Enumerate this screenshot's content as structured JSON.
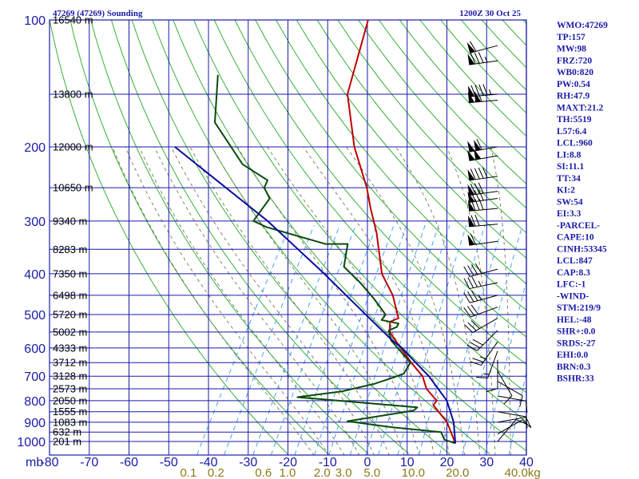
{
  "header": {
    "station_title": "47269 (47269) Sounding",
    "time": "1200Z 30 Oct 25"
  },
  "chart_data": {
    "type": "line",
    "pressure_levels": [
      100,
      200,
      300,
      400,
      500,
      600,
      700,
      800,
      900,
      1000
    ],
    "pressure_unit_label": "mb",
    "temperature_ticks": [
      -80,
      -70,
      -60,
      -50,
      -40,
      -30,
      -20,
      -10,
      0,
      10,
      20,
      30,
      40
    ],
    "xlim": [
      -80,
      40
    ],
    "ylim_mb": [
      1050,
      100
    ],
    "y_scale": "log-pressure",
    "mixing_ratio_labels": [
      "0.1",
      "0.2",
      "0.6",
      "1.0",
      "2.0",
      "3.0",
      "5.0",
      "10.0",
      "20.0",
      "40.0"
    ],
    "mixing_ratio_unit": "g/kg",
    "height_labels": [
      {
        "p": 100,
        "label": "16540 m"
      },
      {
        "p": 150,
        "label": "13800 m"
      },
      {
        "p": 200,
        "label": "12000 m"
      },
      {
        "p": 250,
        "label": "10650 m"
      },
      {
        "p": 300,
        "label": "9340 m"
      },
      {
        "p": 350,
        "label": "8283 m"
      },
      {
        "p": 400,
        "label": "7350 m"
      },
      {
        "p": 450,
        "label": "6498 m"
      },
      {
        "p": 500,
        "label": "5720 m"
      },
      {
        "p": 550,
        "label": "5002 m"
      },
      {
        "p": 600,
        "label": "4333 m"
      },
      {
        "p": 650,
        "label": "3712 m"
      },
      {
        "p": 700,
        "label": "3128 m"
      },
      {
        "p": 750,
        "label": "2573 m"
      },
      {
        "p": 800,
        "label": "2050 m"
      },
      {
        "p": 850,
        "label": "1555 m"
      },
      {
        "p": 900,
        "label": "1083 m"
      },
      {
        "p": 950,
        "label": "632 m"
      },
      {
        "p": 1000,
        "label": "201 m"
      }
    ],
    "series": [
      {
        "key": "temperature",
        "color": "#c00000",
        "points": [
          [
            100,
            -63.5
          ],
          [
            150,
            -57.5
          ],
          [
            200,
            -47.8
          ],
          [
            250,
            -38.5
          ],
          [
            280,
            -34.4
          ],
          [
            320,
            -29.2
          ],
          [
            400,
            -21.7
          ],
          [
            450,
            -15.7
          ],
          [
            500,
            -11.6
          ],
          [
            510,
            -10.8
          ],
          [
            520,
            -12.4
          ],
          [
            550,
            -10.9
          ],
          [
            575,
            -8.3
          ],
          [
            650,
            -0.9
          ],
          [
            700,
            4.0
          ],
          [
            750,
            6.9
          ],
          [
            790,
            10.4
          ],
          [
            800,
            11.3
          ],
          [
            820,
            11.1
          ],
          [
            900,
            17.1
          ],
          [
            1010,
            22.4
          ]
        ]
      },
      {
        "key": "dewpoint",
        "color": "#0a4a0a",
        "points": [
          [
            135,
            -93.0
          ],
          [
            175,
            -86.6
          ],
          [
            220,
            -73.3
          ],
          [
            240,
            -64.6
          ],
          [
            250,
            -64.3
          ],
          [
            265,
            -61.3
          ],
          [
            300,
            -62.0
          ],
          [
            310,
            -57.8
          ],
          [
            340,
            -40.4
          ],
          [
            340,
            -34.8
          ],
          [
            385,
            -32.3
          ],
          [
            420,
            -25.8
          ],
          [
            460,
            -19.7
          ],
          [
            500,
            -14.6
          ],
          [
            515,
            -14.8
          ],
          [
            525,
            -10.0
          ],
          [
            535,
            -9.9
          ],
          [
            545,
            -11.4
          ],
          [
            575,
            -9.4
          ],
          [
            650,
            -1.1
          ],
          [
            690,
            -1.1
          ],
          [
            705,
            -3.1
          ],
          [
            730,
            -7.0
          ],
          [
            760,
            -13.9
          ],
          [
            785,
            -24.3
          ],
          [
            790,
            -20.8
          ],
          [
            830,
            7.4
          ],
          [
            845,
            6.9
          ],
          [
            895,
            -8.1
          ],
          [
            925,
            3.9
          ],
          [
            950,
            17.1
          ],
          [
            990,
            19.1
          ],
          [
            1010,
            22.4
          ]
        ]
      },
      {
        "key": "parcel",
        "color": "#0a0aa0",
        "points": [
          [
            200,
            -93.0
          ],
          [
            300,
            -58.4
          ],
          [
            400,
            -36.2
          ],
          [
            500,
            -19.6
          ],
          [
            575,
            -9.1
          ],
          [
            600,
            -5.5
          ],
          [
            700,
            5.6
          ],
          [
            800,
            13.8
          ],
          [
            900,
            18.8
          ],
          [
            1010,
            22.4
          ]
        ]
      }
    ],
    "wind_barbs": [
      {
        "p": 115,
        "dir": 255,
        "spd": 60
      },
      {
        "p": 125,
        "dir": 262,
        "spd": 85
      },
      {
        "p": 150,
        "dir": 265,
        "spd": 95
      },
      {
        "p": 155,
        "dir": 265,
        "spd": 105
      },
      {
        "p": 200,
        "dir": 260,
        "spd": 110
      },
      {
        "p": 210,
        "dir": 260,
        "spd": 100
      },
      {
        "p": 235,
        "dir": 262,
        "spd": 90
      },
      {
        "p": 255,
        "dir": 262,
        "spd": 80
      },
      {
        "p": 265,
        "dir": 262,
        "spd": 80
      },
      {
        "p": 280,
        "dir": 265,
        "spd": 80
      },
      {
        "p": 305,
        "dir": 265,
        "spd": 70
      },
      {
        "p": 335,
        "dir": 262,
        "spd": 60
      },
      {
        "p": 390,
        "dir": 255,
        "spd": 40
      },
      {
        "p": 420,
        "dir": 258,
        "spd": 35
      },
      {
        "p": 450,
        "dir": 255,
        "spd": 35
      },
      {
        "p": 480,
        "dir": 250,
        "spd": 30
      },
      {
        "p": 510,
        "dir": 240,
        "spd": 30
      },
      {
        "p": 545,
        "dir": 225,
        "spd": 30
      },
      {
        "p": 580,
        "dir": 215,
        "spd": 25
      },
      {
        "p": 610,
        "dir": 200,
        "spd": 15
      },
      {
        "p": 640,
        "dir": 180,
        "spd": 10
      },
      {
        "p": 680,
        "dir": 150,
        "spd": 10
      },
      {
        "p": 720,
        "dir": 120,
        "spd": 10
      },
      {
        "p": 780,
        "dir": 100,
        "spd": 10
      },
      {
        "p": 850,
        "dir": 100,
        "spd": 10
      },
      {
        "p": 900,
        "dir": 80,
        "spd": 10
      },
      {
        "p": 960,
        "dir": 60,
        "spd": 10
      },
      {
        "p": 1000,
        "dir": 40,
        "spd": 10
      }
    ]
  },
  "indices": [
    "WMO:47269",
    "TP:157",
    "MW:98",
    "FRZ:720",
    "WB0:820",
    "PW:0.54",
    "RH:47.9",
    "MAXT:21.2",
    "TH:5519",
    "L57:6.4",
    "LCL:960",
    "LI:8.8",
    "SI:11.1",
    "TT:34",
    "KI:2",
    "SW:54",
    "EI:3.3",
    "-PARCEL-",
    "CAPE:10",
    "CINH:53345",
    "LCL:847",
    "CAP:8.3",
    "LFC:-1",
    "-WIND-",
    "STM:219/9",
    "HEL:-48",
    "SHR+:0.0",
    "SRDS:-27",
    "EHI:0.0",
    "BRN:0.3",
    "BSHR:33"
  ],
  "colors": {
    "grid_blue": "#1a1aa8",
    "dry_adiabat": "#22aa22",
    "moist_adiabat": "#777755",
    "mixing_ratio": "#3399ff",
    "temperature": "#c00000",
    "dewpoint": "#0a4a0a",
    "parcel": "#0a0aa0",
    "mixing_label": "#8a7a1a"
  }
}
